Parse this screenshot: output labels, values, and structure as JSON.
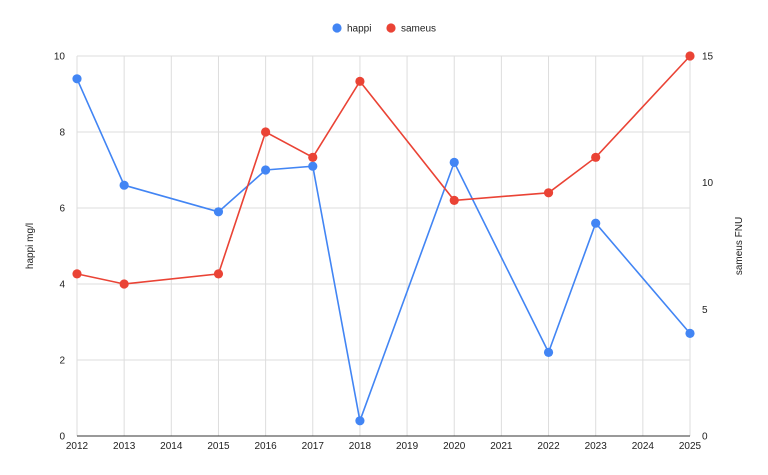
{
  "chart_data": {
    "type": "line",
    "x": [
      2012,
      2013,
      2015,
      2016,
      2017,
      2018,
      2020,
      2022,
      2023,
      2025
    ],
    "x_ticks": [
      2012,
      2013,
      2014,
      2015,
      2016,
      2017,
      2018,
      2019,
      2020,
      2021,
      2022,
      2023,
      2024,
      2025
    ],
    "series": [
      {
        "name": "happi",
        "axis": "left",
        "color": "#4285F4",
        "values": [
          9.4,
          6.6,
          5.9,
          7.0,
          7.1,
          0.4,
          7.2,
          2.2,
          5.6,
          2.7
        ]
      },
      {
        "name": "sameus",
        "axis": "right",
        "color": "#EA4335",
        "values": [
          6.4,
          6.0,
          6.4,
          12.0,
          11.0,
          14.0,
          9.3,
          9.6,
          11.0,
          15.0
        ]
      }
    ],
    "y_left": {
      "label": "happi mg/l",
      "range": [
        0,
        10
      ],
      "ticks": [
        0,
        2,
        4,
        6,
        8,
        10
      ]
    },
    "y_right": {
      "label": "sameus FNU",
      "range": [
        0,
        15
      ],
      "ticks": [
        0,
        5,
        10,
        15
      ]
    },
    "grid": true,
    "legend": "top-center"
  }
}
